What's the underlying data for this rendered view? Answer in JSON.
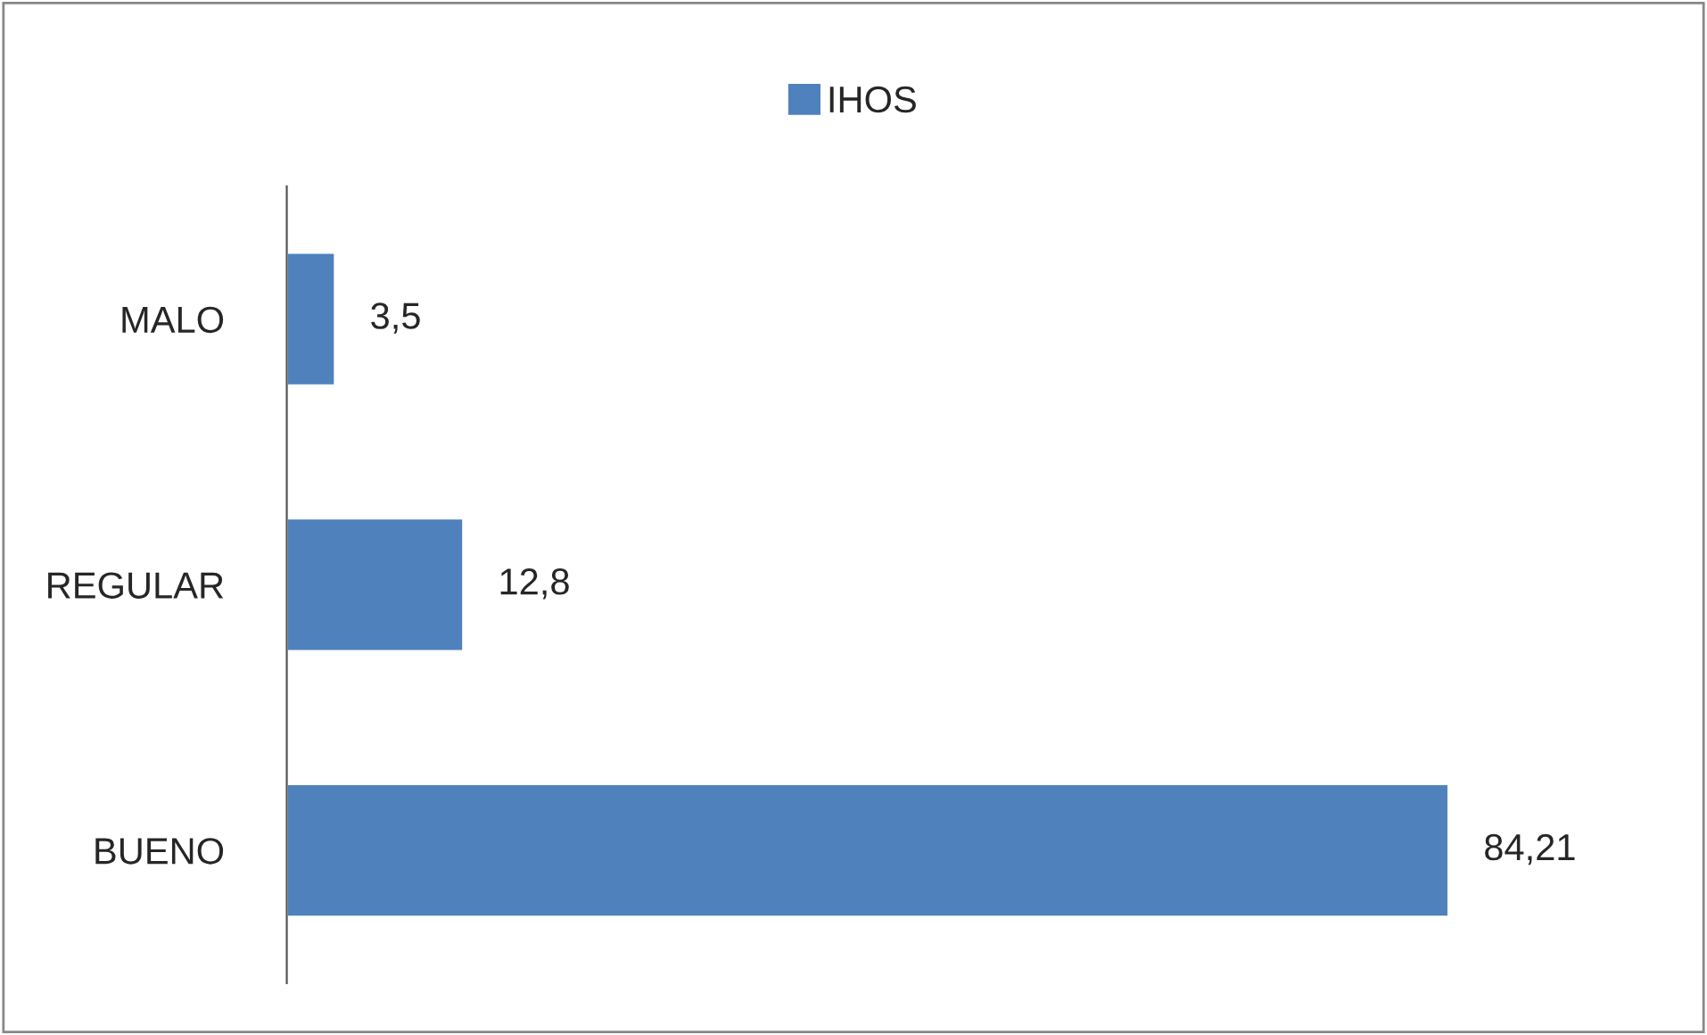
{
  "chart_data": {
    "type": "bar",
    "orientation": "horizontal",
    "categories": [
      "MALO",
      "REGULAR",
      "BUENO"
    ],
    "series": [
      {
        "name": "IHOS",
        "color": "#4f81bd",
        "values": [
          3.5,
          12.8,
          84.21
        ],
        "value_labels": [
          "3,5",
          "12,8",
          "84,21"
        ]
      }
    ],
    "legend": "top",
    "grid": false
  }
}
